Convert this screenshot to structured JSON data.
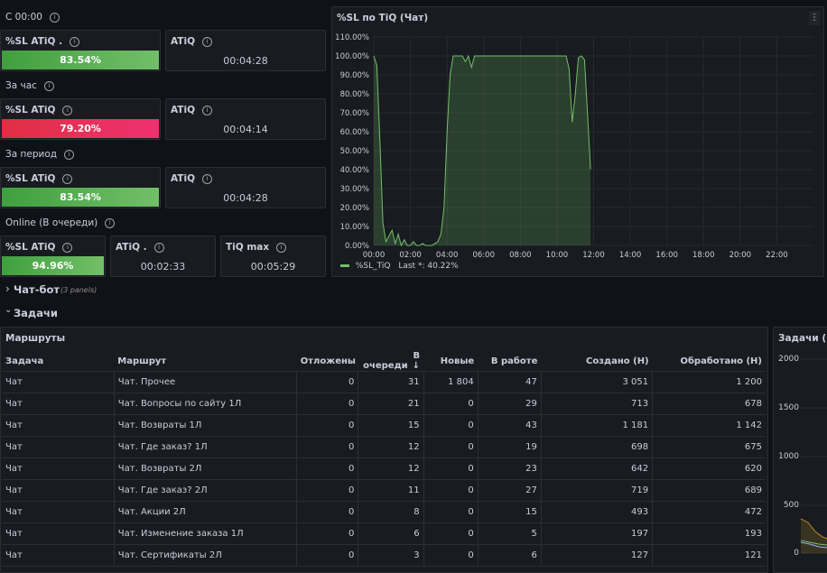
{
  "sections": {
    "s1": "С 00:00",
    "s2": "За час",
    "s3": "За период",
    "s4": "Online (В очереди)"
  },
  "stats": {
    "r1": {
      "sl_title": "%SL ATiQ .",
      "sl_value": "83.54%",
      "sl_color": "#56a64b",
      "atiq_title": "ATiQ",
      "atiq_value": "00:04:28"
    },
    "r2": {
      "sl_title": "%SL ATiQ",
      "sl_value": "79.20%",
      "sl_color": "#e02f44",
      "atiq_title": "ATiQ",
      "atiq_value": "00:04:14"
    },
    "r3": {
      "sl_title": "%SL ATiQ",
      "sl_value": "83.54%",
      "sl_color": "#56a64b",
      "atiq_title": "ATiQ",
      "atiq_value": "00:04:28"
    },
    "r4": {
      "sl_title": "%SL ATiQ",
      "sl_value": "94.96%",
      "sl_color": "#56a64b",
      "atiq_title": "ATiQ .",
      "atiq_value": "00:02:33",
      "tiq_title": "TiQ max",
      "tiq_value": "00:05:29"
    }
  },
  "chart_panel": {
    "title": "%SL по TiQ (Чат)",
    "menu_icon": "vertical-dots-icon",
    "legend_name": "%SL_TiQ",
    "legend_last": "Last *: 40.22%",
    "color": "#73bf69"
  },
  "chart_data": {
    "type": "area",
    "title": "%SL по TiQ (Чат)",
    "series": [
      {
        "name": "%SL_TiQ",
        "points": [
          [
            "00:00",
            100
          ],
          [
            "00:10",
            95
          ],
          [
            "00:20",
            55
          ],
          [
            "00:30",
            12
          ],
          [
            "00:40",
            2
          ],
          [
            "00:50",
            5
          ],
          [
            "01:00",
            8
          ],
          [
            "01:10",
            1
          ],
          [
            "01:20",
            6
          ],
          [
            "01:30",
            0
          ],
          [
            "01:40",
            3
          ],
          [
            "01:50",
            0
          ],
          [
            "02:00",
            0
          ],
          [
            "02:10",
            2
          ],
          [
            "02:20",
            0
          ],
          [
            "02:30",
            0
          ],
          [
            "02:40",
            1
          ],
          [
            "02:50",
            0
          ],
          [
            "03:00",
            0
          ],
          [
            "03:10",
            0
          ],
          [
            "03:20",
            1
          ],
          [
            "03:30",
            2
          ],
          [
            "03:40",
            6
          ],
          [
            "03:50",
            20
          ],
          [
            "04:00",
            60
          ],
          [
            "04:10",
            90
          ],
          [
            "04:20",
            100
          ],
          [
            "04:30",
            100
          ],
          [
            "04:40",
            100
          ],
          [
            "04:50",
            100
          ],
          [
            "05:00",
            97
          ],
          [
            "05:10",
            100
          ],
          [
            "05:20",
            94
          ],
          [
            "05:30",
            100
          ],
          [
            "05:40",
            100
          ],
          [
            "05:50",
            100
          ],
          [
            "06:00",
            100
          ],
          [
            "07:00",
            100
          ],
          [
            "08:00",
            100
          ],
          [
            "09:00",
            100
          ],
          [
            "10:00",
            100
          ],
          [
            "10:30",
            100
          ],
          [
            "10:40",
            93
          ],
          [
            "10:50",
            65
          ],
          [
            "11:00",
            80
          ],
          [
            "11:10",
            99
          ],
          [
            "11:20",
            100
          ],
          [
            "11:30",
            98
          ],
          [
            "11:40",
            70
          ],
          [
            "11:50",
            40.22
          ]
        ]
      }
    ],
    "x_ticks": [
      "00:00",
      "02:00",
      "04:00",
      "06:00",
      "08:00",
      "10:00",
      "12:00",
      "14:00",
      "16:00",
      "18:00",
      "20:00",
      "22:00"
    ],
    "y_ticks": [
      "0.00%",
      "10.00%",
      "20.00%",
      "30.00%",
      "40.00%",
      "50.00%",
      "60.00%",
      "70.00%",
      "80.00%",
      "90.00%",
      "100.00%",
      "110.00%"
    ],
    "ylim": [
      0,
      110
    ],
    "xlim": [
      "00:00",
      "24:00"
    ]
  },
  "collapsed_row": {
    "title": "Чат-бот",
    "sub": "(3 panels)"
  },
  "expanded_row": {
    "title": "Задачи"
  },
  "table": {
    "title": "Маршруты",
    "headers": [
      "Задача",
      "Маршрут",
      "Отложены",
      "В очереди",
      "Новые",
      "В работе",
      "Создано (Н)",
      "Обработано (Н)"
    ],
    "sort_icon": "arrow-down-icon",
    "rows": [
      [
        "Чат",
        "Чат. Прочее",
        "0",
        "31",
        "1 804",
        "47",
        "3 051",
        "1 200"
      ],
      [
        "Чат",
        "Чат. Вопросы по сайту 1Л",
        "0",
        "21",
        "0",
        "29",
        "713",
        "678"
      ],
      [
        "Чат",
        "Чат. Возвраты 1Л",
        "0",
        "15",
        "0",
        "43",
        "1 181",
        "1 142"
      ],
      [
        "Чат",
        "Чат. Где заказ? 1Л",
        "0",
        "12",
        "0",
        "19",
        "698",
        "675"
      ],
      [
        "Чат",
        "Чат. Возвраты 2Л",
        "0",
        "12",
        "0",
        "23",
        "642",
        "620"
      ],
      [
        "Чат",
        "Чат. Где заказ? 2Л",
        "0",
        "11",
        "0",
        "27",
        "719",
        "689"
      ],
      [
        "Чат",
        "Чат. Акции 2Л",
        "0",
        "8",
        "0",
        "15",
        "493",
        "472"
      ],
      [
        "Чат",
        "Чат. Изменение заказа 1Л",
        "0",
        "6",
        "0",
        "5",
        "197",
        "193"
      ],
      [
        "Чат",
        "Чат. Сертификаты 2Л",
        "0",
        "3",
        "0",
        "6",
        "127",
        "121"
      ]
    ]
  },
  "side_panel": {
    "title": "Задачи (Чат",
    "y_ticks": [
      "0",
      "500",
      "1000",
      "1500",
      "2000"
    ]
  }
}
